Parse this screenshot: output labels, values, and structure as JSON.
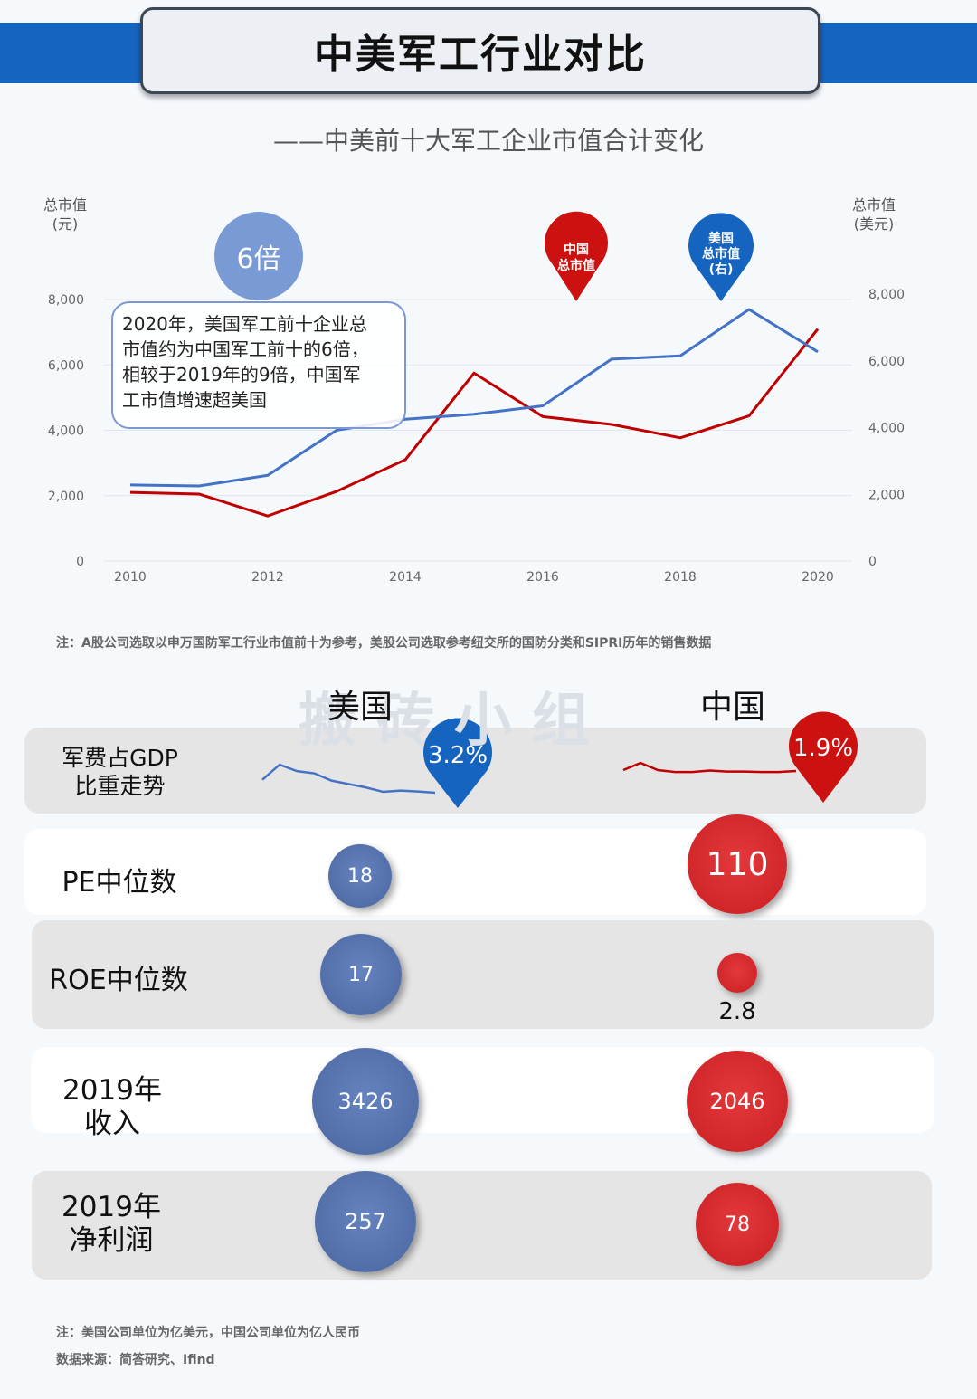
{
  "title": "中美军工行业对比",
  "subtitle": "——中美前十大军工企业市值合计变化",
  "left_axis_caption": [
    "总市值",
    "(元)"
  ],
  "right_axis_caption": [
    "总市值",
    "(美元)"
  ],
  "bubble_label": "6倍",
  "note_box_lines": [
    "2020年，美国军工前十企业总",
    "市值约为中国军工前十的6倍，",
    "相较于2019年的9倍，中国军",
    "工市值增速超美国"
  ],
  "china_pin_lines": [
    "中国",
    "总市值"
  ],
  "us_pin_lines": [
    "美国",
    "总市值",
    "(右)"
  ],
  "colors": {
    "us": "#4472c4",
    "cn": "#c00000",
    "us_pin": "#1565c0",
    "cn_pin": "#cc1111"
  },
  "chart_data": {
    "type": "line",
    "x": [
      2010,
      2011,
      2012,
      2013,
      2014,
      2015,
      2016,
      2017,
      2018,
      2019,
      2020
    ],
    "x_ticks": [
      "2010",
      "2012",
      "2014",
      "2016",
      "2018",
      "2020"
    ],
    "left_ticks": [
      "0",
      "2,000",
      "4,000",
      "6,000",
      "8,000"
    ],
    "right_ticks": [
      "0",
      "2,000",
      "4,000",
      "6,000",
      "8,000"
    ],
    "ylim_left": [
      0,
      8000
    ],
    "ylim_right": [
      0,
      8000
    ],
    "grid": true,
    "series": [
      {
        "name": "中国总市值",
        "axis": "left",
        "color": "#c00000",
        "values": [
          2100,
          2050,
          1380,
          2130,
          3100,
          5750,
          4420,
          4180,
          3770,
          4440,
          7100
        ]
      },
      {
        "name": "美国总市值(右)",
        "axis": "right",
        "color": "#4472c4",
        "values": [
          2280,
          2250,
          2570,
          3920,
          4250,
          4400,
          4650,
          6050,
          6150,
          7540,
          6270
        ]
      }
    ]
  },
  "note1": "注：A股公司选取以申万国防军工行业市值前十为参考，美股公司选取参考纽交所的国防分类和SIPRI历年的销售数据",
  "country_us": "美国",
  "country_cn": "中国",
  "watermark": "搬砖小组",
  "rows": {
    "gdp": {
      "label_lines": [
        "军费占GDP",
        "比重走势"
      ],
      "us_value": "3.2%",
      "cn_value": "1.9%",
      "us_trend": [
        2.7,
        3.05,
        2.9,
        2.85,
        2.68,
        2.6,
        2.52,
        2.42,
        2.45,
        2.43,
        2.4
      ],
      "cn_trend": [
        1.8,
        1.95,
        1.8,
        1.76,
        1.76,
        1.79,
        1.77,
        1.77,
        1.76,
        1.76,
        1.78
      ]
    },
    "pe": {
      "label_lines": [
        "PE中位数"
      ],
      "us": 18,
      "cn": 110,
      "us_text": "18",
      "cn_text": "110"
    },
    "roe": {
      "label_lines": [
        "ROE中位数"
      ],
      "us": 17,
      "cn": 2.8,
      "us_text": "17",
      "cn_text": "2.8"
    },
    "revenue": {
      "label_lines": [
        "2019年",
        "收入"
      ],
      "us": 3426,
      "cn": 2046,
      "us_text": "3426",
      "cn_text": "2046"
    },
    "profit": {
      "label_lines": [
        "2019年",
        "净利润"
      ],
      "us": 257,
      "cn": 78,
      "us_text": "257",
      "cn_text": "78"
    }
  },
  "foot_note": "注：美国公司单位为亿美元，中国公司单位为亿人民币",
  "foot_source": "数据来源：简答研究、Ifind"
}
